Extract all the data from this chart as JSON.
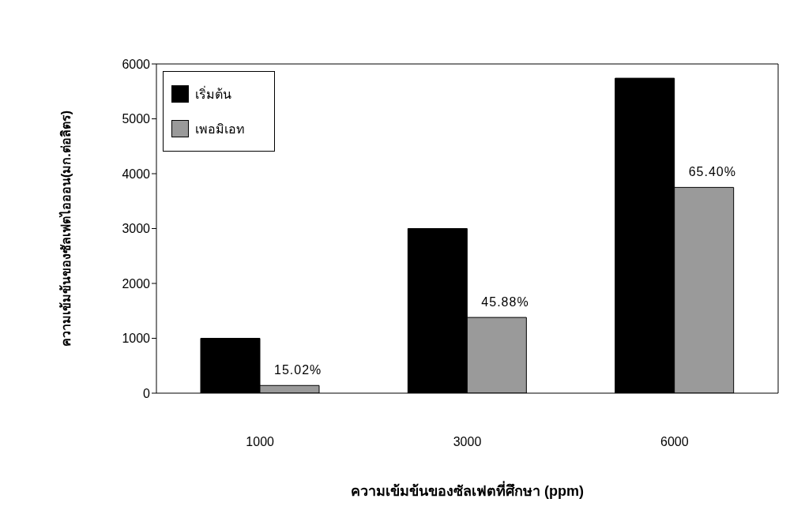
{
  "chart_data": {
    "type": "bar",
    "xlabel": "ความเข้มข้นของซัลเฟตที่ศึกษา (ppm)",
    "ylabel": "ความเข้มข้นของซัลเฟตไอออน(มก.ต่อลิตร)",
    "categories": [
      "1000",
      "3000",
      "6000"
    ],
    "series": [
      {
        "name": "เริ่มต้น",
        "color": "#000000",
        "values": [
          1000,
          3000,
          5740
        ]
      },
      {
        "name": "เพอมิเอท",
        "color": "#9a9a9a",
        "values": [
          140,
          1380,
          3750
        ]
      }
    ],
    "ylim": [
      0,
      6000
    ],
    "yticks": [
      0,
      1000,
      2000,
      3000,
      4000,
      5000,
      6000
    ],
    "grid": false,
    "legend": "top left",
    "annotations": [
      {
        "text": "15.02%",
        "x": "1000",
        "y": 140
      },
      {
        "text": "45.88%",
        "x": "3000",
        "y": 1380
      },
      {
        "text": "65.40%",
        "x": "6000",
        "y": 3750
      }
    ]
  }
}
